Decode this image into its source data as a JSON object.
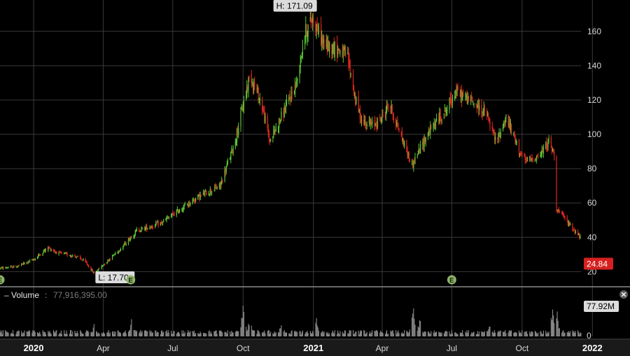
{
  "colors": {
    "background": "#000000",
    "up": "#5cc936",
    "down": "#e0281f",
    "grid": "#3a3a3a",
    "volume": "#8a8a8a",
    "last_price_badge": "#d62020",
    "earnings_marker": "#8fb36a"
  },
  "high_label": "H: 171.09",
  "low_label": "L: 17.70",
  "last_price": "24.84",
  "volume_panel": {
    "title": "Volume",
    "separator": ":",
    "value": "77,916,395.00",
    "last_badge": "77.92M",
    "axis_zero": "0",
    "close_icon": "close-icon"
  },
  "earnings_marker_label": "E",
  "chart_data": {
    "type": "candlestick",
    "x_range": [
      "2019-11-18",
      "2022-02-10"
    ],
    "ylim": [
      12,
      175
    ],
    "y_ticks": [
      20,
      40,
      60,
      80,
      100,
      120,
      140,
      160
    ],
    "x_ticks": [
      {
        "label": "2020",
        "date": "2020-01-01",
        "bold": true
      },
      {
        "label": "Apr",
        "date": "2020-04-01",
        "bold": false
      },
      {
        "label": "Jul",
        "date": "2020-07-01",
        "bold": false
      },
      {
        "label": "Oct",
        "date": "2020-10-01",
        "bold": false
      },
      {
        "label": "2021",
        "date": "2021-01-01",
        "bold": true
      },
      {
        "label": "Apr",
        "date": "2021-04-01",
        "bold": false
      },
      {
        "label": "Jul",
        "date": "2021-07-01",
        "bold": false
      },
      {
        "label": "Oct",
        "date": "2021-10-01",
        "bold": false
      },
      {
        "label": "2022",
        "date": "2022-01-01",
        "bold": true
      }
    ],
    "grid": true,
    "price_path": [
      [
        "2019-11-18",
        22
      ],
      [
        "2019-12-10",
        23
      ],
      [
        "2020-01-01",
        27
      ],
      [
        "2020-01-20",
        34
      ],
      [
        "2020-02-01",
        31
      ],
      [
        "2020-02-25",
        29
      ],
      [
        "2020-03-08",
        26
      ],
      [
        "2020-03-20",
        19
      ],
      [
        "2020-04-01",
        24
      ],
      [
        "2020-04-25",
        34
      ],
      [
        "2020-05-15",
        44
      ],
      [
        "2020-06-15",
        48
      ],
      [
        "2020-07-10",
        56
      ],
      [
        "2020-08-01",
        63
      ],
      [
        "2020-09-01",
        70
      ],
      [
        "2020-09-20",
        95
      ],
      [
        "2020-10-10",
        135
      ],
      [
        "2020-10-25",
        118
      ],
      [
        "2020-11-05",
        96
      ],
      [
        "2020-11-25",
        115
      ],
      [
        "2020-12-10",
        130
      ],
      [
        "2020-12-20",
        158
      ],
      [
        "2020-12-31",
        168
      ],
      [
        "2021-01-15",
        152
      ],
      [
        "2021-02-01",
        150
      ],
      [
        "2021-02-15",
        145
      ],
      [
        "2021-02-25",
        120
      ],
      [
        "2021-03-05",
        108
      ],
      [
        "2021-03-20",
        105
      ],
      [
        "2021-04-01",
        110
      ],
      [
        "2021-04-10",
        118
      ],
      [
        "2021-04-25",
        100
      ],
      [
        "2021-05-10",
        82
      ],
      [
        "2021-05-30",
        100
      ],
      [
        "2021-06-15",
        110
      ],
      [
        "2021-06-25",
        115
      ],
      [
        "2021-07-05",
        125
      ],
      [
        "2021-07-25",
        120
      ],
      [
        "2021-08-15",
        112
      ],
      [
        "2021-08-28",
        95
      ],
      [
        "2021-09-10",
        110
      ],
      [
        "2021-09-25",
        93
      ],
      [
        "2021-10-05",
        84
      ],
      [
        "2021-10-25",
        88
      ],
      [
        "2021-11-05",
        96
      ],
      [
        "2021-11-12",
        88
      ],
      [
        "2021-11-15",
        57
      ],
      [
        "2021-12-01",
        48
      ],
      [
        "2021-12-20",
        38
      ],
      [
        "2022-01-10",
        31
      ],
      [
        "2022-01-20",
        25
      ]
    ],
    "high": {
      "date": "2020-12-31",
      "value": 171.09
    },
    "low": {
      "date": "2020-03-20",
      "value": 17.7
    },
    "last": {
      "date": "2022-01-20",
      "value": 24.84
    },
    "earnings_dates": [
      "2019-11-18",
      "2020-05-07",
      "2021-07-01"
    ],
    "volume": {
      "last": 77916395,
      "spikes": [
        {
          "date": "2020-03-20",
          "value": 0.35
        },
        {
          "date": "2020-05-08",
          "value": 0.45
        },
        {
          "date": "2020-10-01",
          "value": 0.95
        },
        {
          "date": "2020-10-10",
          "value": 0.7
        },
        {
          "date": "2020-11-20",
          "value": 0.4
        },
        {
          "date": "2021-01-05",
          "value": 0.55
        },
        {
          "date": "2021-05-12",
          "value": 0.95
        },
        {
          "date": "2021-05-20",
          "value": 0.55
        },
        {
          "date": "2021-08-20",
          "value": 0.45
        },
        {
          "date": "2021-11-10",
          "value": 0.95
        },
        {
          "date": "2021-11-16",
          "value": 0.7
        },
        {
          "date": "2022-01-20",
          "value": 0.95
        }
      ]
    }
  }
}
